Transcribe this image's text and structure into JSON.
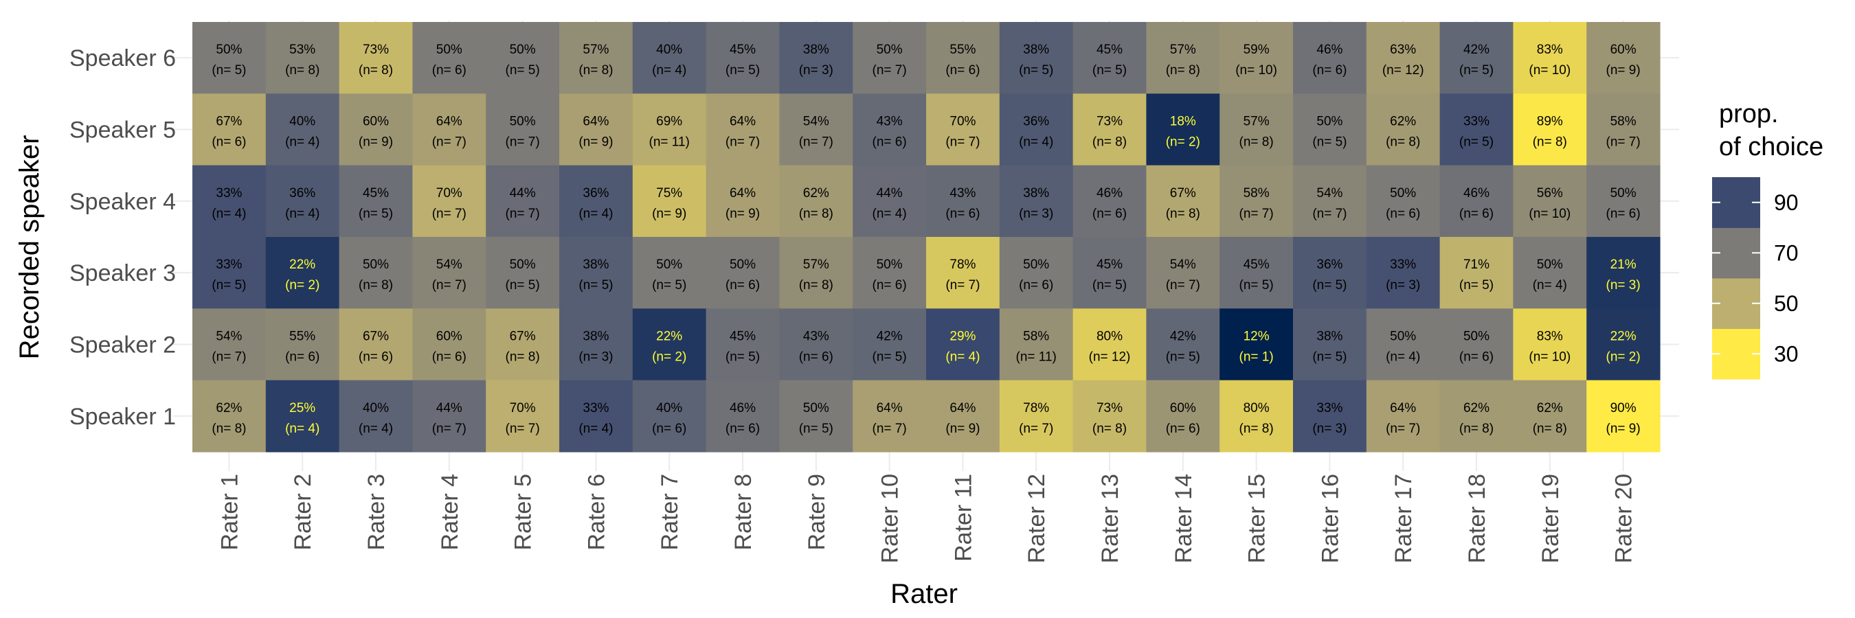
{
  "chart_data": {
    "type": "heatmap",
    "title": "",
    "xlabel": "Rater",
    "ylabel": "Recorded speaker",
    "x_categories": [
      "Rater 1",
      "Rater 2",
      "Rater 3",
      "Rater 4",
      "Rater 5",
      "Rater 6",
      "Rater 7",
      "Rater 8",
      "Rater 9",
      "Rater 10",
      "Rater 11",
      "Rater 12",
      "Rater 13",
      "Rater 14",
      "Rater 15",
      "Rater 16",
      "Rater 17",
      "Rater 18",
      "Rater 19",
      "Rater 20"
    ],
    "y_categories": [
      "Speaker 6",
      "Speaker 5",
      "Speaker 4",
      "Speaker 3",
      "Speaker 2",
      "Speaker 1"
    ],
    "values": [
      [
        50,
        53,
        73,
        50,
        50,
        57,
        40,
        45,
        38,
        50,
        55,
        38,
        45,
        57,
        59,
        46,
        63,
        42,
        83,
        60
      ],
      [
        67,
        40,
        60,
        64,
        50,
        64,
        69,
        64,
        54,
        43,
        70,
        36,
        73,
        18,
        57,
        50,
        62,
        33,
        89,
        58
      ],
      [
        33,
        36,
        45,
        70,
        44,
        36,
        75,
        64,
        62,
        44,
        43,
        38,
        46,
        67,
        58,
        54,
        50,
        46,
        56,
        50
      ],
      [
        33,
        22,
        50,
        54,
        50,
        38,
        50,
        50,
        57,
        50,
        78,
        50,
        45,
        54,
        45,
        36,
        33,
        71,
        50,
        21
      ],
      [
        54,
        55,
        67,
        60,
        67,
        38,
        22,
        45,
        43,
        42,
        29,
        58,
        80,
        42,
        12,
        38,
        50,
        50,
        83,
        22
      ],
      [
        62,
        25,
        40,
        44,
        70,
        33,
        40,
        46,
        50,
        64,
        64,
        78,
        73,
        60,
        80,
        33,
        64,
        62,
        62,
        90
      ]
    ],
    "labels": [
      [
        "50%",
        "53%",
        "73%",
        "50%",
        "50%",
        "57%",
        "40%",
        "45%",
        "38%",
        "50%",
        "55%",
        "38%",
        "45%",
        "57%",
        "59%",
        "46%",
        "63%",
        "42%",
        "83%",
        "60%"
      ],
      [
        "67%",
        "40%",
        "60%",
        "64%",
        "50%",
        "64%",
        "69%",
        "64%",
        "54%",
        "43%",
        "70%",
        "36%",
        "73%",
        "18%",
        "57%",
        "50%",
        "62%",
        "33%",
        "89%",
        "58%"
      ],
      [
        "33%",
        "36%",
        "45%",
        "70%",
        "44%",
        "36%",
        "75%",
        "64%",
        "62%",
        "44%",
        "43%",
        "38%",
        "46%",
        "67%",
        "58%",
        "54%",
        "50%",
        "46%",
        "56%",
        "50%"
      ],
      [
        "33%",
        "22%",
        "50%",
        "54%",
        "50%",
        "38%",
        "50%",
        "50%",
        "57%",
        "50%",
        "78%",
        "50%",
        "45%",
        "54%",
        "45%",
        "36%",
        "33%",
        "71%",
        "50%",
        "21%"
      ],
      [
        "54%",
        "55%",
        "67%",
        "60%",
        "67%",
        "38%",
        "22%",
        "45%",
        "43%",
        "42%",
        "29%",
        "58%",
        "80%",
        "42%",
        "12%",
        "38%",
        "50%",
        "50%",
        "83%",
        "22%"
      ],
      [
        "62%",
        "25%",
        "40%",
        "44%",
        "70%",
        "33%",
        "40%",
        "46%",
        "50%",
        "64%",
        "64%",
        "78%",
        "73%",
        "60%",
        "80%",
        "33%",
        "64%",
        "62%",
        "62%",
        "90%"
      ]
    ],
    "n_labels": [
      [
        "(n= 5)",
        "(n= 8)",
        "(n= 8)",
        "(n= 6)",
        "(n= 5)",
        "(n= 8)",
        "(n= 4)",
        "(n= 5)",
        "(n= 3)",
        "(n= 7)",
        "(n= 6)",
        "(n= 5)",
        "(n= 5)",
        "(n= 8)",
        "(n= 10)",
        "(n= 6)",
        "(n= 12)",
        "(n= 5)",
        "(n= 10)",
        "(n= 9)"
      ],
      [
        "(n= 6)",
        "(n= 4)",
        "(n= 9)",
        "(n= 7)",
        "(n= 7)",
        "(n= 9)",
        "(n= 11)",
        "(n= 7)",
        "(n= 7)",
        "(n= 6)",
        "(n= 7)",
        "(n= 4)",
        "(n= 8)",
        "(n= 2)",
        "(n= 8)",
        "(n= 5)",
        "(n= 8)",
        "(n= 5)",
        "(n= 8)",
        "(n= 7)"
      ],
      [
        "(n= 4)",
        "(n= 4)",
        "(n= 5)",
        "(n= 7)",
        "(n= 7)",
        "(n= 4)",
        "(n= 9)",
        "(n= 9)",
        "(n= 8)",
        "(n= 4)",
        "(n= 6)",
        "(n= 3)",
        "(n= 6)",
        "(n= 8)",
        "(n= 7)",
        "(n= 7)",
        "(n= 6)",
        "(n= 6)",
        "(n= 10)",
        "(n= 6)"
      ],
      [
        "(n= 5)",
        "(n= 2)",
        "(n= 8)",
        "(n= 7)",
        "(n= 5)",
        "(n= 5)",
        "(n= 5)",
        "(n= 6)",
        "(n= 8)",
        "(n= 6)",
        "(n= 7)",
        "(n= 6)",
        "(n= 5)",
        "(n= 7)",
        "(n= 5)",
        "(n= 5)",
        "(n= 3)",
        "(n= 5)",
        "(n= 4)",
        "(n= 3)"
      ],
      [
        "(n= 7)",
        "(n= 6)",
        "(n= 6)",
        "(n= 6)",
        "(n= 8)",
        "(n= 3)",
        "(n= 2)",
        "(n= 5)",
        "(n= 6)",
        "(n= 5)",
        "(n= 4)",
        "(n= 11)",
        "(n= 12)",
        "(n= 5)",
        "(n= 1)",
        "(n= 5)",
        "(n= 4)",
        "(n= 6)",
        "(n= 10)",
        "(n= 2)"
      ],
      [
        "(n= 8)",
        "(n= 4)",
        "(n= 4)",
        "(n= 7)",
        "(n= 7)",
        "(n= 4)",
        "(n= 6)",
        "(n= 6)",
        "(n= 5)",
        "(n= 7)",
        "(n= 9)",
        "(n= 7)",
        "(n= 8)",
        "(n= 6)",
        "(n= 8)",
        "(n= 3)",
        "(n= 7)",
        "(n= 8)",
        "(n= 8)",
        "(n= 9)"
      ]
    ],
    "legend": {
      "title_lines": [
        "prop.",
        "of choice"
      ],
      "ticks": [
        30,
        50,
        70,
        90
      ],
      "tick_labels": [
        "30",
        "50",
        "70",
        "90"
      ],
      "placement": "right"
    },
    "color_scale": {
      "stops": [
        {
          "value": 12,
          "color": "#00204d"
        },
        {
          "value": 30,
          "color": "#3c4a70"
        },
        {
          "value": 50,
          "color": "#7c7b78"
        },
        {
          "value": 70,
          "color": "#bcaf6f"
        },
        {
          "value": 90,
          "color": "#ffea46"
        }
      ],
      "light_text_color": "#ffff33",
      "dark_text_color": "#000000",
      "light_text_below": 30
    },
    "grid": true
  }
}
